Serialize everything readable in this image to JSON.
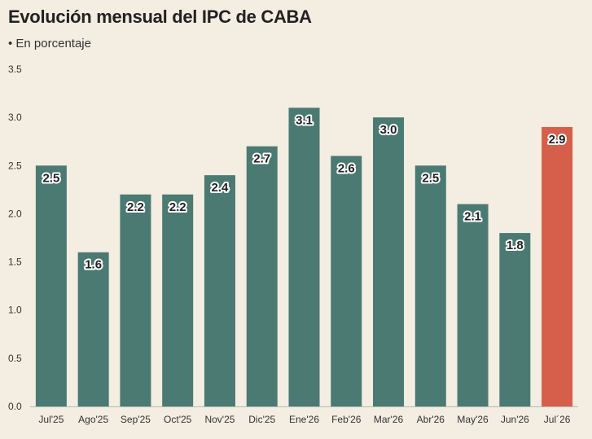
{
  "title": "Evolución mensual del IPC de CABA",
  "subtitle": "• En porcentaje",
  "colors": {
    "background": "#f3ede2",
    "bar": "#4a7a72",
    "highlight": "#d65f4c",
    "axis": "#333333"
  },
  "chart_data": {
    "type": "bar",
    "title": "Evolución mensual del IPC de CABA",
    "subtitle": "• En porcentaje",
    "xlabel": "",
    "ylabel": "",
    "ylim": [
      0,
      3.5
    ],
    "yticks": [
      "0.0",
      "0.5",
      "1.0",
      "1.5",
      "2.0",
      "2.5",
      "3.0",
      "3.5"
    ],
    "categories": [
      "Jul'25",
      "Ago'25",
      "Sep'25",
      "Oct'25",
      "Nov'25",
      "Dic'25",
      "Ene'26",
      "Feb'26",
      "Mar'26",
      "Abr'26",
      "May'26",
      "Jun'26",
      "Jul´26"
    ],
    "values": [
      2.5,
      1.6,
      2.2,
      2.2,
      2.4,
      2.7,
      3.1,
      2.6,
      3.0,
      2.5,
      2.1,
      1.8,
      2.9
    ],
    "data_labels": [
      "2.5",
      "1.6",
      "2.2",
      "2.2",
      "2.4",
      "2.7",
      "3.1",
      "2.6",
      "3.0",
      "2.5",
      "2.1",
      "1.8",
      "2.9"
    ],
    "highlight_category": "Jul´26",
    "grid": false,
    "legend": "none"
  }
}
